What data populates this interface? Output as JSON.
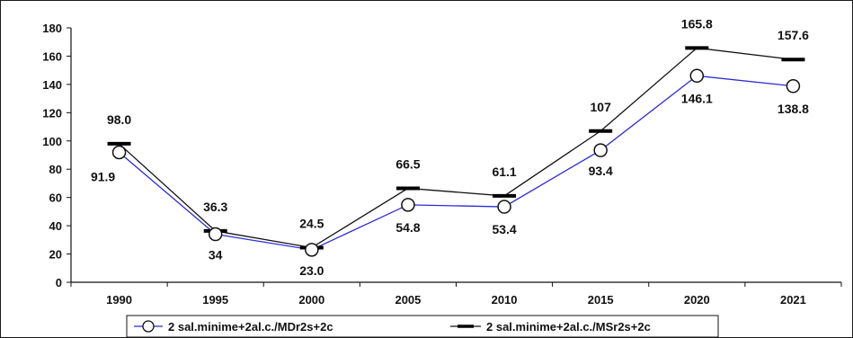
{
  "chart_data": {
    "type": "line",
    "categories": [
      "1990",
      "1995",
      "2000",
      "2005",
      "2010",
      "2015",
      "2020",
      "2021"
    ],
    "ylim": [
      0,
      180
    ],
    "yticks": [
      0,
      20,
      40,
      60,
      80,
      100,
      120,
      140,
      160,
      180
    ],
    "grid": false,
    "legend_position": "bottom",
    "series": [
      {
        "name": "2 sal.minime+2al.c./MDr2s+2c",
        "values": [
          91.9,
          34,
          23.0,
          54.8,
          53.4,
          93.4,
          146.1,
          138.8
        ],
        "labels": [
          "91.9",
          "34",
          "23.0",
          "54.8",
          "53.4",
          "93.4",
          "146.1",
          "138.8"
        ],
        "color": "#2b2bd6",
        "marker": "circle"
      },
      {
        "name": "2 sal.minime+2al.c./MSr2s+2c",
        "values": [
          98.0,
          36.3,
          24.5,
          66.5,
          61.1,
          107,
          165.8,
          157.6
        ],
        "labels": [
          "98.0",
          "36.3",
          "24.5",
          "66.5",
          "61.1",
          "107",
          "165.8",
          "157.6"
        ],
        "color": "#111111",
        "marker": "dash"
      }
    ]
  }
}
